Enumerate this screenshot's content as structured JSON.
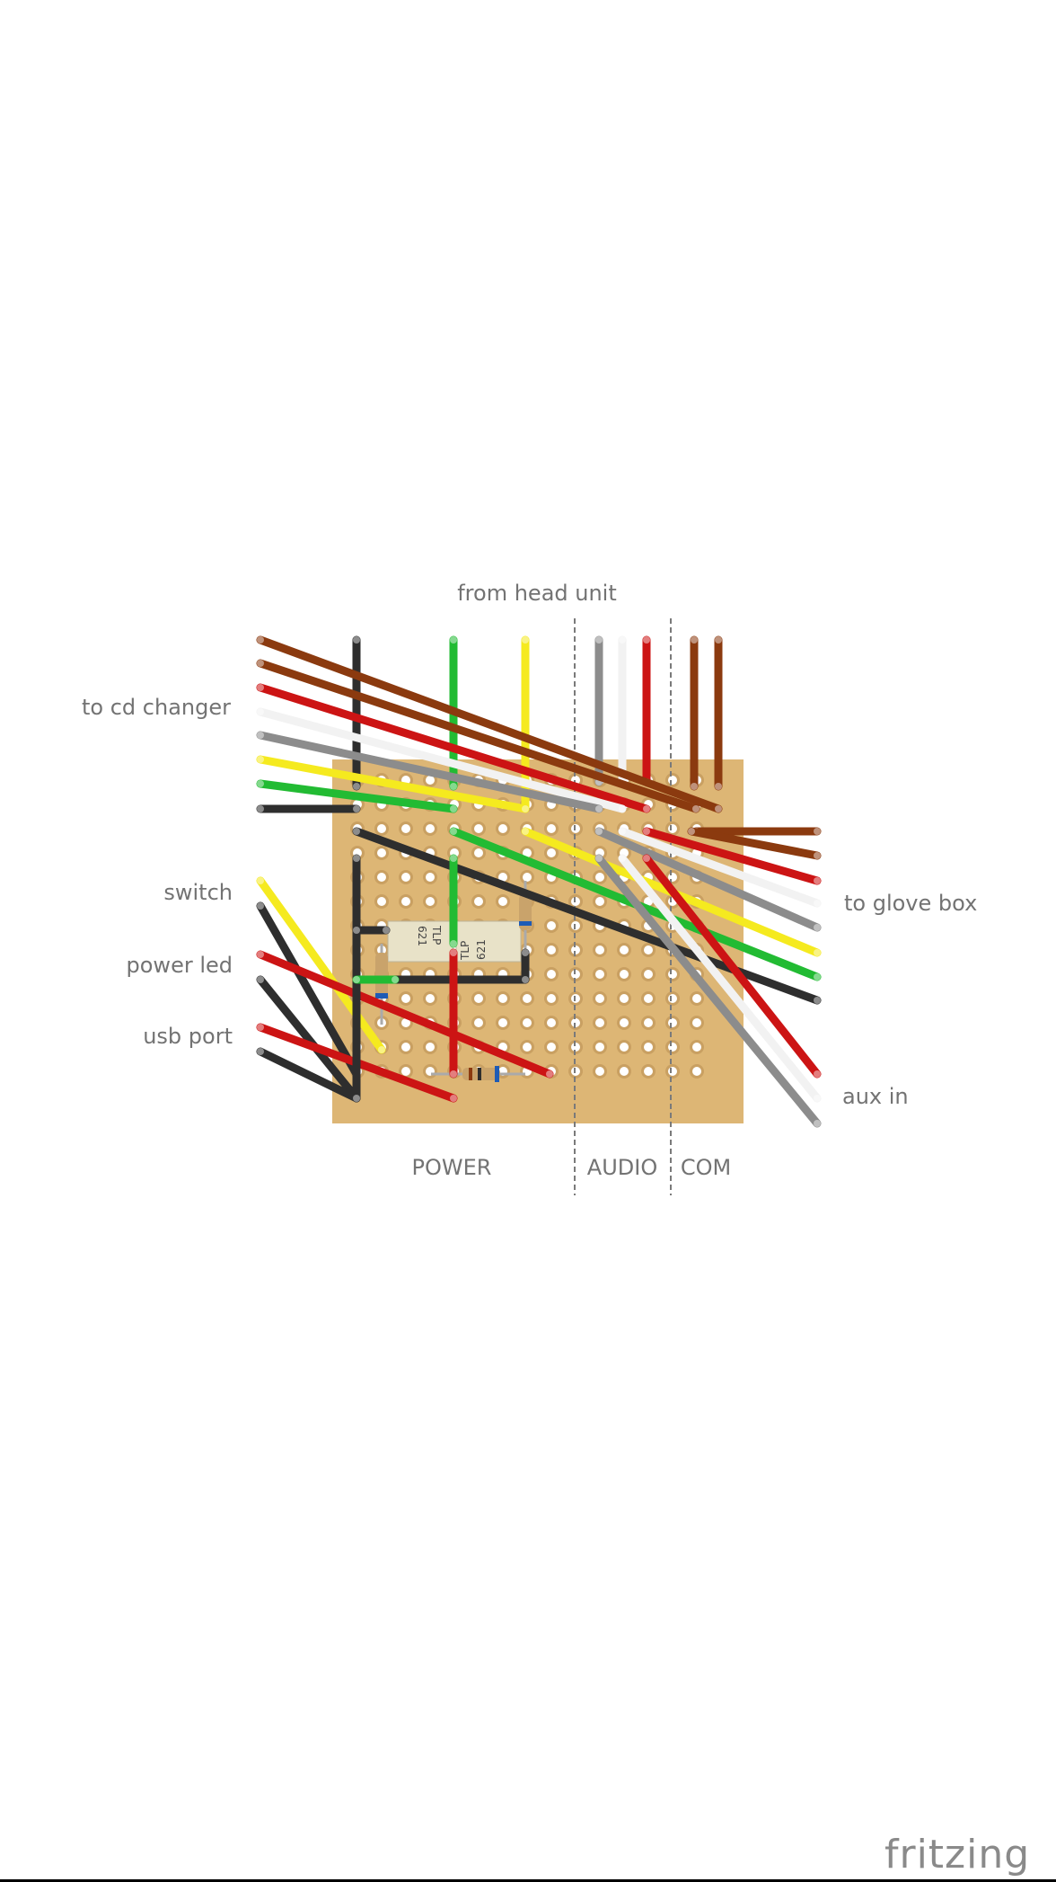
{
  "labels": {
    "top": "from head unit",
    "left": [
      "to cd changer",
      "switch",
      "power led",
      "usb port"
    ],
    "right": [
      "to glove box",
      "aux in"
    ],
    "sections": [
      "POWER",
      "AUDIO",
      "COM"
    ]
  },
  "chips": [
    {
      "line1": "TLP",
      "line2": "621"
    },
    {
      "line1": "TLP",
      "line2": "621"
    }
  ],
  "brand": "fritzing",
  "colors": {
    "board": "#DDB675",
    "red": "#CC1414",
    "brown": "#8B3A0F",
    "black": "#2E2E2E",
    "green": "#22BB33",
    "yellow": "#F5EA1F",
    "grey": "#8C8C8C",
    "white": "#F2F2F2",
    "text": "#737373"
  }
}
